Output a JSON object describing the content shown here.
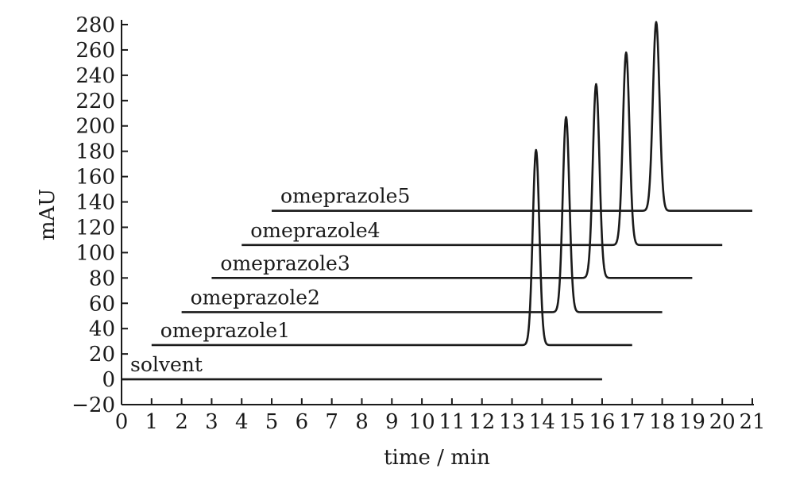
{
  "chart_data": {
    "type": "line",
    "title": "",
    "xlabel": "time / min",
    "ylabel": "mAU",
    "xlim": [
      0,
      21
    ],
    "ylim": [
      -20,
      280
    ],
    "xticks": [
      "0",
      "1",
      "2",
      "3",
      "4",
      "5",
      "6",
      "7",
      "8",
      "9",
      "10",
      "11",
      "12",
      "13",
      "14",
      "15",
      "16",
      "17",
      "18",
      "19",
      "20",
      "21"
    ],
    "yticks": [
      "−20",
      "0",
      "20",
      "40",
      "60",
      "80",
      "100",
      "120",
      "140",
      "160",
      "180",
      "200",
      "220",
      "240",
      "260",
      "280"
    ],
    "grid": false,
    "legend": "none",
    "series": [
      {
        "name": "solvent",
        "x_start": 0,
        "x_end": 16,
        "baseline": 0,
        "peak_time": null,
        "peak_top": null
      },
      {
        "name": "omeprazole1",
        "x_start": 1,
        "x_end": 17,
        "baseline": 27,
        "peak_time": 13.8,
        "peak_top": 181
      },
      {
        "name": "omeprazole2",
        "x_start": 2,
        "x_end": 18,
        "baseline": 53,
        "peak_time": 14.8,
        "peak_top": 207
      },
      {
        "name": "omeprazole3",
        "x_start": 3,
        "x_end": 19,
        "baseline": 80,
        "peak_time": 15.8,
        "peak_top": 233
      },
      {
        "name": "omeprazole4",
        "x_start": 4,
        "x_end": 20,
        "baseline": 106,
        "peak_time": 16.8,
        "peak_top": 258
      },
      {
        "name": "omeprazole5",
        "x_start": 5,
        "x_end": 21,
        "baseline": 133,
        "peak_time": 17.8,
        "peak_top": 282
      }
    ]
  }
}
